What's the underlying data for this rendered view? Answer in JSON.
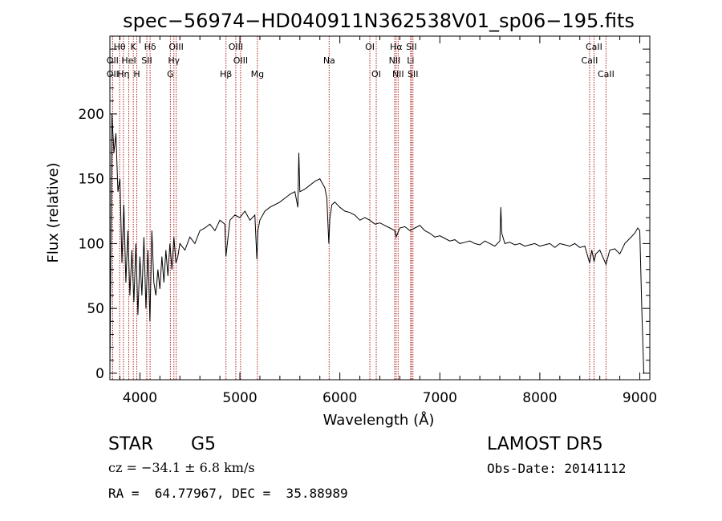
{
  "chart_data": {
    "type": "line",
    "title": "spec−56974−HD040911N362538V01_sp06−195.fits",
    "xlabel": "Wavelength (Å)",
    "ylabel": "Flux (relative)",
    "xlim": [
      3700,
      9100
    ],
    "ylim": [
      -5,
      260
    ],
    "xticks": [
      4000,
      5000,
      6000,
      7000,
      8000,
      9000
    ],
    "yticks": [
      0,
      50,
      100,
      150,
      200
    ],
    "grid": false,
    "series": [
      {
        "x": [
          3700,
          3720,
          3740,
          3760,
          3780,
          3800,
          3820,
          3840,
          3860,
          3880,
          3900,
          3920,
          3940,
          3960,
          3980,
          4000,
          4020,
          4040,
          4060,
          4080,
          4100,
          4120,
          4140,
          4160,
          4180,
          4200,
          4220,
          4240,
          4260,
          4280,
          4300,
          4320,
          4340,
          4360,
          4380,
          4400,
          4450,
          4500,
          4550,
          4600,
          4650,
          4700,
          4750,
          4800,
          4850,
          4860,
          4900,
          4950,
          5000,
          5050,
          5100,
          5150,
          5170,
          5180,
          5200,
          5250,
          5300,
          5350,
          5400,
          5450,
          5500,
          5550,
          5580,
          5590,
          5600,
          5650,
          5700,
          5750,
          5800,
          5850,
          5870,
          5890,
          5900,
          5920,
          5950,
          6000,
          6050,
          6100,
          6150,
          6200,
          6250,
          6300,
          6350,
          6400,
          6450,
          6500,
          6550,
          6563,
          6600,
          6650,
          6700,
          6750,
          6800,
          6850,
          6900,
          6950,
          7000,
          7050,
          7100,
          7150,
          7200,
          7250,
          7300,
          7350,
          7400,
          7450,
          7500,
          7550,
          7600,
          7610,
          7620,
          7650,
          7700,
          7750,
          7800,
          7850,
          7900,
          7950,
          8000,
          8050,
          8100,
          8150,
          8200,
          8250,
          8300,
          8350,
          8400,
          8450,
          8498,
          8520,
          8542,
          8560,
          8600,
          8662,
          8700,
          8750,
          8800,
          8850,
          8900,
          8950,
          8980,
          9000,
          9020,
          9040
        ],
        "values": [
          0,
          200,
          170,
          185,
          140,
          150,
          85,
          130,
          70,
          110,
          60,
          95,
          55,
          100,
          45,
          90,
          60,
          105,
          50,
          95,
          40,
          110,
          70,
          60,
          80,
          65,
          90,
          70,
          95,
          75,
          100,
          80,
          105,
          85,
          90,
          100,
          95,
          105,
          100,
          110,
          112,
          115,
          110,
          118,
          115,
          90,
          118,
          122,
          120,
          125,
          118,
          122,
          88,
          110,
          118,
          125,
          128,
          130,
          132,
          135,
          138,
          140,
          128,
          170,
          140,
          142,
          145,
          148,
          150,
          143,
          135,
          100,
          120,
          130,
          132,
          128,
          125,
          124,
          122,
          118,
          120,
          118,
          115,
          116,
          114,
          112,
          110,
          105,
          112,
          113,
          110,
          112,
          114,
          110,
          108,
          105,
          106,
          104,
          102,
          103,
          100,
          101,
          102,
          100,
          99,
          102,
          100,
          98,
          102,
          128,
          108,
          100,
          101,
          99,
          100,
          98,
          99,
          100,
          98,
          99,
          100,
          97,
          100,
          99,
          98,
          100,
          97,
          98,
          85,
          95,
          86,
          92,
          95,
          84,
          95,
          96,
          92,
          100,
          104,
          108,
          112,
          110,
          50,
          0
        ]
      }
    ],
    "lines": [
      {
        "label": "Hθ",
        "x": 3797,
        "row": 0
      },
      {
        "label": "OII",
        "x": 3727,
        "row": 1
      },
      {
        "label": "OII",
        "x": 3727,
        "row": 2
      },
      {
        "label": "K",
        "x": 3934,
        "row": 0
      },
      {
        "label": "HeI",
        "x": 3889,
        "row": 1
      },
      {
        "label": "Hη",
        "x": 3835,
        "row": 2
      },
      {
        "label": "H",
        "x": 3969,
        "row": 2
      },
      {
        "label": "Hδ",
        "x": 4102,
        "row": 0
      },
      {
        "label": "SII",
        "x": 4069,
        "row": 1
      },
      {
        "label": "OIII",
        "x": 4363,
        "row": 0
      },
      {
        "label": "Hγ",
        "x": 4340,
        "row": 1
      },
      {
        "label": "G",
        "x": 4305,
        "row": 2
      },
      {
        "label": "OIII",
        "x": 4959,
        "row": 0
      },
      {
        "label": "OIII",
        "x": 5007,
        "row": 1
      },
      {
        "label": "Hβ",
        "x": 4861,
        "row": 2
      },
      {
        "label": "Mg",
        "x": 5175,
        "row": 2
      },
      {
        "label": "Na",
        "x": 5893,
        "row": 1
      },
      {
        "label": "OI",
        "x": 6300,
        "row": 0
      },
      {
        "label": "OI",
        "x": 6364,
        "row": 2
      },
      {
        "label": "Hα",
        "x": 6563,
        "row": 0
      },
      {
        "label": "SII",
        "x": 6716,
        "row": 0
      },
      {
        "label": "NII",
        "x": 6548,
        "row": 1
      },
      {
        "label": "Li",
        "x": 6708,
        "row": 1
      },
      {
        "label": "NII",
        "x": 6583,
        "row": 2
      },
      {
        "label": "SII",
        "x": 6731,
        "row": 2
      },
      {
        "label": "CaII",
        "x": 8542,
        "row": 0
      },
      {
        "label": "CaII",
        "x": 8498,
        "row": 1
      },
      {
        "label": "CaII",
        "x": 8662,
        "row": 2
      }
    ]
  },
  "footer": {
    "class_label": "STAR",
    "subclass_label": "G5",
    "survey_label": "LAMOST DR5",
    "cz_text": "cz = −34.1 ± 6.8 km/s",
    "obs_date_text": "Obs-Date: 20141112",
    "radec_text": "RA =  64.77967, DEC =  35.88989"
  },
  "colors": {
    "line_marker": "#b22222",
    "spectrum": "#000000"
  }
}
